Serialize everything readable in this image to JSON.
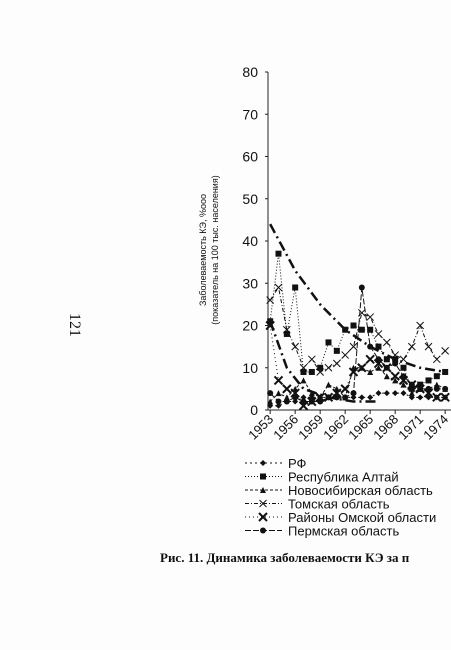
{
  "page_number": "121",
  "chart_data": {
    "type": "line",
    "ylabel": [
      "Заболеваемость КЭ, %ooo",
      "(показатель на 100 тыс. населения)"
    ],
    "x": [
      1953,
      1954,
      1955,
      1956,
      1957,
      1958,
      1959,
      1960,
      1961,
      1962,
      1963,
      1964,
      1965,
      1966,
      1967,
      1968,
      1969,
      1970,
      1971,
      1972,
      1973,
      1974
    ],
    "xlim": [
      1952.5,
      1975
    ],
    "xticks": [
      1953,
      1956,
      1959,
      1962,
      1965,
      1968,
      1971,
      1974
    ],
    "ylim": [
      0,
      80
    ],
    "yticks": [
      0,
      10,
      20,
      30,
      40,
      50,
      60,
      70,
      80
    ],
    "series": [
      {
        "name": "РФ",
        "color": "#111",
        "marker": "diamond",
        "dash": "2 3",
        "values": [
          1,
          1,
          2,
          2,
          3,
          3,
          3,
          3,
          3,
          3,
          3,
          3,
          3,
          4,
          4,
          4,
          4,
          3,
          3,
          3,
          3,
          3
        ]
      },
      {
        "name": "Республика Алтай",
        "color": "#111",
        "marker": "square",
        "dash": "1 2",
        "values": [
          21,
          37,
          18,
          29,
          9,
          9,
          10,
          16,
          14,
          19,
          20,
          19,
          19,
          15,
          12,
          12,
          10,
          5,
          6,
          7,
          8,
          9
        ]
      },
      {
        "name": "Новосибирская область",
        "color": "#111",
        "marker": "triangle",
        "dash": "3 2",
        "values": [
          2,
          4,
          3,
          5,
          7,
          4,
          3,
          6,
          5,
          3,
          10,
          10,
          9,
          10,
          8,
          7,
          6,
          4,
          5,
          5,
          6,
          5
        ]
      },
      {
        "name": "Томская область",
        "color": "#111",
        "marker": "x",
        "dash": "4 2 1 2",
        "values": [
          26,
          29,
          19,
          15,
          10,
          12,
          9,
          10,
          11,
          13,
          15,
          23,
          22,
          18,
          16,
          13,
          12,
          15,
          20,
          15,
          12,
          14
        ]
      },
      {
        "name": "Районы Омской области",
        "color": "#111",
        "marker": "bigx",
        "dash": "1 3",
        "values": [
          20,
          7,
          5,
          4,
          1,
          2,
          3,
          3,
          4,
          5,
          9,
          10,
          12,
          11,
          10,
          8,
          7,
          6,
          5,
          4,
          3,
          3
        ]
      },
      {
        "name": "Пермская область",
        "color": "#111",
        "marker": "circle",
        "dash": "6 2",
        "values": [
          4,
          2,
          2,
          3,
          2,
          2,
          2,
          3,
          3,
          3,
          4,
          29,
          15,
          12,
          10,
          11,
          8,
          6,
          5,
          5,
          5,
          5
        ]
      }
    ],
    "trendlines": [
      {
        "x": [
          1953,
          1956,
          1959,
          1962,
          1965,
          1968,
          1971,
          1974
        ],
        "values": [
          44,
          33,
          25,
          19,
          15,
          12,
          10,
          9
        ]
      },
      {
        "x": [
          1953,
          1955,
          1957,
          1960,
          1963,
          1966
        ],
        "values": [
          21,
          10,
          5,
          3,
          2,
          2
        ]
      }
    ]
  },
  "caption": "Рис. 11. Динамика заболеваемости КЭ за п"
}
